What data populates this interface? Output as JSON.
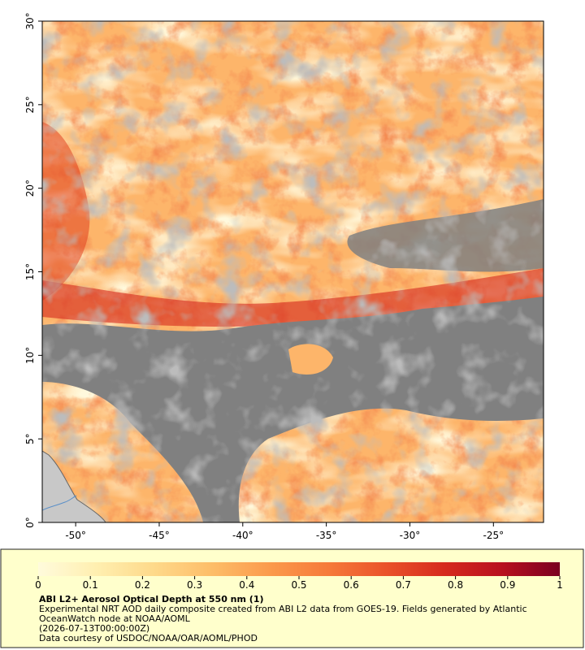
{
  "map": {
    "xlim": [
      -52,
      -22
    ],
    "ylim": [
      0,
      30
    ],
    "xticks": [
      {
        "value": -50,
        "label": "-50°"
      },
      {
        "value": -45,
        "label": "-45°"
      },
      {
        "value": -40,
        "label": "-40°"
      },
      {
        "value": -35,
        "label": "-35°"
      },
      {
        "value": -30,
        "label": "-30°"
      },
      {
        "value": -25,
        "label": "-25°"
      }
    ],
    "yticks": [
      {
        "value": 0,
        "label": "0°"
      },
      {
        "value": 5,
        "label": "5°"
      },
      {
        "value": 10,
        "label": "10°"
      },
      {
        "value": 15,
        "label": "15°"
      },
      {
        "value": 20,
        "label": "20°"
      },
      {
        "value": 25,
        "label": "25°"
      },
      {
        "value": 30,
        "label": "30°"
      }
    ]
  },
  "colorbar": {
    "range": [
      0,
      1
    ],
    "ticks": [
      0,
      0.1,
      0.2,
      0.3,
      0.4,
      0.5,
      0.6,
      0.7,
      0.8,
      0.9,
      1
    ],
    "colors": [
      "#fffbdc",
      "#ffefb0",
      "#fed98a",
      "#fdbd68",
      "#fb9a4c",
      "#f67a3a",
      "#ea522a",
      "#d62a1e",
      "#b8101f",
      "#7a0020"
    ]
  },
  "caption": {
    "title": "ABI L2+ Aerosol Optical Depth at 550 nm (1)",
    "lines": [
      "Experimental NRT AOD daily composite created from ABI L2 data from GOES-19. Fields generated by Atlantic OceanWatch node at NOAA/AOML",
      "(2026-07-13T00:00:00Z)",
      "Data courtesy of USDOC/NOAA/OAR/AOML/PHOD"
    ]
  }
}
